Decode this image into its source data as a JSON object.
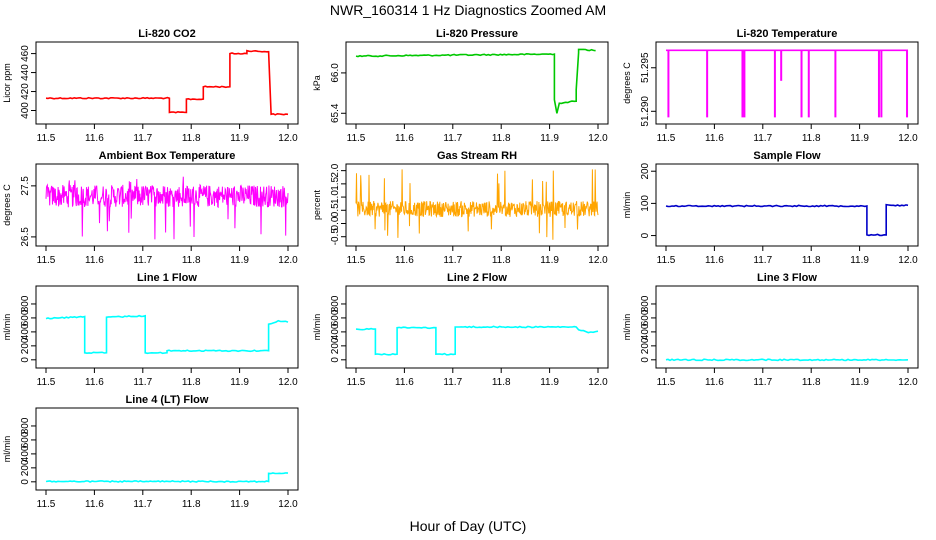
{
  "title": "NWR_160314  1 Hz Diagnostics Zoomed AM",
  "xlabel": "Hour of Day (UTC)",
  "chart_data": [
    {
      "type": "line",
      "title": "Li-820 CO2",
      "ylabel": "Licor ppm",
      "color": "#ff0000",
      "style": "step",
      "xlim": [
        11.5,
        12.0
      ],
      "ylim": [
        390,
        468
      ],
      "yticks": [
        "400",
        "420",
        "440",
        "460"
      ],
      "ytick_values": [
        400,
        420,
        440,
        460
      ],
      "xticks": [
        "11.5",
        "11.6",
        "11.7",
        "11.8",
        "11.9",
        "12.0"
      ],
      "x": [
        11.5,
        11.755,
        11.755,
        11.79,
        11.79,
        11.825,
        11.825,
        11.88,
        11.88,
        11.915,
        11.915,
        11.96,
        11.965,
        12.0
      ],
      "y": [
        413,
        413,
        398,
        398,
        412,
        412,
        425,
        425,
        460,
        460,
        463,
        462,
        396,
        396
      ]
    },
    {
      "type": "line",
      "title": "Li-820 Pressure",
      "ylabel": "kPa",
      "color": "#00c800",
      "style": "step",
      "xlim": [
        11.5,
        12.0
      ],
      "ylim": [
        65.3,
        66.4
      ],
      "yticks": [
        "65.4",
        "66.0"
      ],
      "ytick_values": [
        65.4,
        66.0
      ],
      "xticks": [
        "11.5",
        "11.6",
        "11.7",
        "11.8",
        "11.9",
        "12.0"
      ],
      "x": [
        11.5,
        11.91,
        11.91,
        11.915,
        11.92,
        11.955,
        11.955,
        11.96,
        11.96,
        11.97,
        11.995
      ],
      "y": [
        66.25,
        66.28,
        65.6,
        65.4,
        65.55,
        65.58,
        65.75,
        66.3,
        66.35,
        66.35,
        66.33
      ]
    },
    {
      "type": "line",
      "title": "Li-820 Temperature",
      "ylabel": "degrees C",
      "color": "#ff00ff",
      "style": "spikes",
      "xlim": [
        11.5,
        12.0
      ],
      "ylim": [
        51.289,
        51.2975
      ],
      "yticks": [
        "51.290",
        "51.295"
      ],
      "ytick_values": [
        51.29,
        51.295
      ],
      "xticks": [
        "11.5",
        "11.6",
        "11.7",
        "11.8",
        "11.9",
        "12.0"
      ],
      "baseline": 51.297,
      "low": 51.2893,
      "x": [
        11.505,
        11.585,
        11.658,
        11.662,
        11.725,
        11.738,
        11.78,
        11.795,
        11.85,
        11.94,
        11.945,
        11.998
      ],
      "y": [
        51.2893,
        51.2893,
        51.2893,
        51.2893,
        51.2893,
        51.2935,
        51.2893,
        51.2893,
        51.2893,
        51.2893,
        51.2893,
        51.2893
      ]
    },
    {
      "type": "line",
      "title": "Ambient Box Temperature",
      "ylabel": "degrees C",
      "color": "#ff00ff",
      "style": "noise",
      "xlim": [
        11.5,
        12.0
      ],
      "ylim": [
        26.4,
        27.85
      ],
      "yticks": [
        "26.5",
        "27.5"
      ],
      "ytick_values": [
        26.5,
        27.5
      ],
      "xticks": [
        "11.5",
        "11.6",
        "11.7",
        "11.8",
        "11.9",
        "12.0"
      ],
      "x": [
        11.5,
        12.0
      ],
      "y": [
        27.3,
        27.3
      ],
      "noise_amplitude": 0.22,
      "spike_min": 26.45,
      "spike_max": 27.75
    },
    {
      "type": "line",
      "title": "Gas Stream RH",
      "ylabel": "percent",
      "color": "#ffa500",
      "style": "noise",
      "xlim": [
        11.5,
        12.0
      ],
      "ylim": [
        -0.7,
        2.1
      ],
      "yticks": [
        "-0.5",
        "0.0",
        "0.5",
        "1.0",
        "1.5",
        "2.0"
      ],
      "ytick_values": [
        -0.5,
        0.0,
        0.5,
        1.0,
        1.5,
        2.0
      ],
      "xticks": [
        "11.5",
        "11.6",
        "11.7",
        "11.8",
        "11.9",
        "12.0"
      ],
      "x": [
        11.5,
        12.0
      ],
      "y": [
        0.55,
        0.55
      ],
      "noise_amplitude": 0.3,
      "spike_min": -0.65,
      "spike_max": 2.05
    },
    {
      "type": "line",
      "title": "Sample Flow",
      "ylabel": "ml/min",
      "color": "#0000c8",
      "style": "step",
      "xlim": [
        11.5,
        12.0
      ],
      "ylim": [
        -20,
        210
      ],
      "yticks": [
        "0",
        "100",
        "200"
      ],
      "ytick_values": [
        0,
        100,
        200
      ],
      "xticks": [
        "11.5",
        "11.6",
        "11.7",
        "11.8",
        "11.9",
        "12.0"
      ],
      "x": [
        11.5,
        11.915,
        11.915,
        11.955,
        11.955,
        11.97,
        12.0
      ],
      "y": [
        92,
        92,
        2,
        2,
        96,
        94,
        94
      ]
    },
    {
      "type": "line",
      "title": "Line 1 Flow",
      "ylabel": "ml/min",
      "color": "#00ffff",
      "style": "step",
      "xlim": [
        11.5,
        12.0
      ],
      "ylim": [
        -60,
        1000
      ],
      "yticks": [
        "0",
        "200",
        "400",
        "600",
        "800"
      ],
      "ytick_values": [
        0,
        200,
        400,
        600,
        800
      ],
      "xticks": [
        "11.5",
        "11.6",
        "11.7",
        "11.8",
        "11.9",
        "12.0"
      ],
      "x": [
        11.5,
        11.58,
        11.58,
        11.625,
        11.625,
        11.705,
        11.705,
        11.75,
        11.75,
        11.96,
        11.96,
        11.98,
        12.0
      ],
      "y": [
        590,
        620,
        100,
        100,
        610,
        630,
        100,
        100,
        130,
        130,
        510,
        560,
        540
      ]
    },
    {
      "type": "line",
      "title": "Line 2 Flow",
      "ylabel": "ml/min",
      "color": "#00ffff",
      "style": "step",
      "xlim": [
        11.5,
        12.0
      ],
      "ylim": [
        -60,
        1000
      ],
      "yticks": [
        "0",
        "200",
        "400",
        "600",
        "800"
      ],
      "ytick_values": [
        0,
        200,
        400,
        600,
        800
      ],
      "xticks": [
        "11.5",
        "11.6",
        "11.7",
        "11.8",
        "11.9",
        "12.0"
      ],
      "x": [
        11.5,
        11.54,
        11.54,
        11.585,
        11.585,
        11.665,
        11.665,
        11.705,
        11.705,
        11.955,
        11.96,
        11.98,
        12.0
      ],
      "y": [
        440,
        440,
        80,
        80,
        460,
        460,
        80,
        80,
        470,
        470,
        430,
        390,
        410
      ]
    },
    {
      "type": "line",
      "title": "Line 3 Flow",
      "ylabel": "ml/min",
      "color": "#00ffff",
      "style": "step",
      "xlim": [
        11.5,
        12.0
      ],
      "ylim": [
        -60,
        1000
      ],
      "yticks": [
        "0",
        "200",
        "400",
        "600",
        "800"
      ],
      "ytick_values": [
        0,
        200,
        400,
        600,
        800
      ],
      "xticks": [
        "11.5",
        "11.6",
        "11.7",
        "11.8",
        "11.9",
        "12.0"
      ],
      "x": [
        11.5,
        12.0
      ],
      "y": [
        0,
        0
      ]
    },
    {
      "type": "line",
      "title": "Line 4 (LT) Flow",
      "ylabel": "ml/min",
      "color": "#00ffff",
      "style": "step",
      "xlim": [
        11.5,
        12.0
      ],
      "ylim": [
        -60,
        1000
      ],
      "yticks": [
        "0",
        "200",
        "400",
        "600",
        "800"
      ],
      "ytick_values": [
        0,
        200,
        400,
        600,
        800
      ],
      "xticks": [
        "11.5",
        "11.6",
        "11.7",
        "11.8",
        "11.9",
        "12.0"
      ],
      "x": [
        11.5,
        11.96,
        11.96,
        12.0
      ],
      "y": [
        5,
        5,
        120,
        125
      ]
    }
  ]
}
